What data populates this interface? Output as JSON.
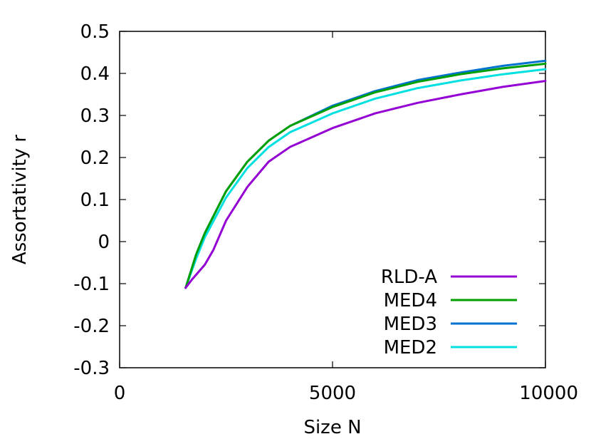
{
  "chart_data": {
    "type": "line",
    "title": "",
    "xlabel": "Size N",
    "ylabel": "Assortativity r",
    "xlim": [
      0,
      10000
    ],
    "ylim": [
      -0.3,
      0.5
    ],
    "x_ticks": [
      "0",
      "5000",
      "10000"
    ],
    "x_tick_values": [
      0,
      5000,
      10000
    ],
    "y_ticks": [
      "-0.3",
      "-0.2",
      "-0.1",
      "0",
      "0.1",
      "0.2",
      "0.3",
      "0.4",
      "0.5"
    ],
    "y_tick_values": [
      -0.3,
      -0.2,
      -0.1,
      0,
      0.1,
      0.2,
      0.3,
      0.4,
      0.5
    ],
    "grid": false,
    "legend_position": "bottom-right",
    "series": [
      {
        "name": "RLD-A",
        "color": "#9400d3",
        "x": [
          1550,
          1700,
          2000,
          2200,
          2500,
          3000,
          3500,
          4000,
          5000,
          6000,
          7000,
          8000,
          9000,
          10000
        ],
        "y": [
          -0.11,
          -0.09,
          -0.055,
          -0.02,
          0.05,
          0.13,
          0.19,
          0.225,
          0.27,
          0.305,
          0.33,
          0.35,
          0.368,
          0.382
        ]
      },
      {
        "name": "MED4",
        "color": "#00a000",
        "x": [
          1550,
          1800,
          2000,
          2500,
          3000,
          3500,
          4000,
          5000,
          6000,
          7000,
          8000,
          9000,
          10000
        ],
        "y": [
          -0.11,
          -0.03,
          0.02,
          0.12,
          0.19,
          0.24,
          0.275,
          0.32,
          0.355,
          0.38,
          0.398,
          0.412,
          0.423
        ]
      },
      {
        "name": "MED3",
        "color": "#0072d0",
        "x": [
          1550,
          1800,
          2000,
          2500,
          3000,
          3500,
          4000,
          5000,
          6000,
          7000,
          8000,
          9000,
          10000
        ],
        "y": [
          -0.11,
          -0.03,
          0.02,
          0.12,
          0.19,
          0.24,
          0.275,
          0.323,
          0.358,
          0.384,
          0.402,
          0.418,
          0.43
        ]
      },
      {
        "name": "MED2",
        "color": "#00e0e0",
        "x": [
          1550,
          1800,
          2000,
          2500,
          3000,
          3500,
          4000,
          5000,
          6000,
          7000,
          8000,
          9000,
          10000
        ],
        "y": [
          -0.11,
          -0.04,
          0.01,
          0.105,
          0.175,
          0.225,
          0.26,
          0.305,
          0.34,
          0.365,
          0.383,
          0.398,
          0.41
        ]
      }
    ]
  }
}
